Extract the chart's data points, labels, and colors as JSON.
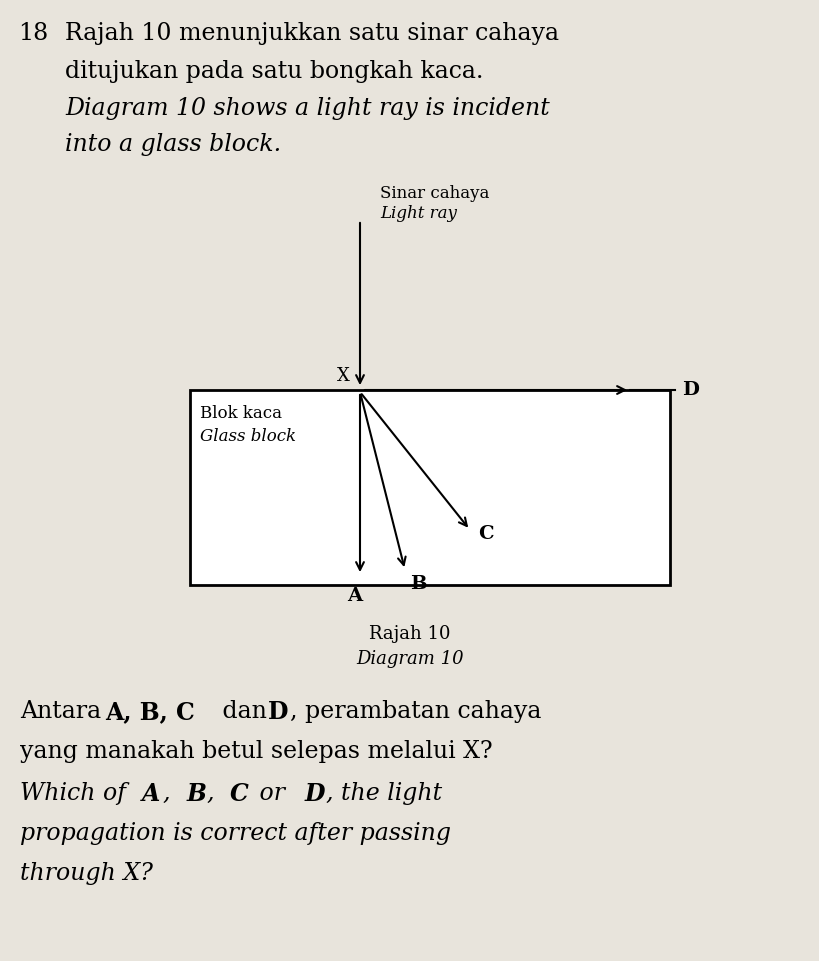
{
  "background_color": "#e8e4dc",
  "question_number": "18",
  "text_line1": "Rajah 10 menunjukkan satu sinar cahaya",
  "text_line2": "ditujukan pada satu bongkah kaca.",
  "text_line3_italic": "Diagram 10 shows a light ray is incident",
  "text_line4_italic": "into a glass block.",
  "label_sinar": "Sinar cahaya",
  "label_lightray": "Light ray",
  "label_blok": "Blok kaca",
  "label_glass": "Glass block",
  "label_caption1": "Rajah 10",
  "label_caption2": "Diagram 10",
  "label_X": "X",
  "label_A": "A",
  "label_B": "B",
  "label_C": "C",
  "label_D": "D"
}
